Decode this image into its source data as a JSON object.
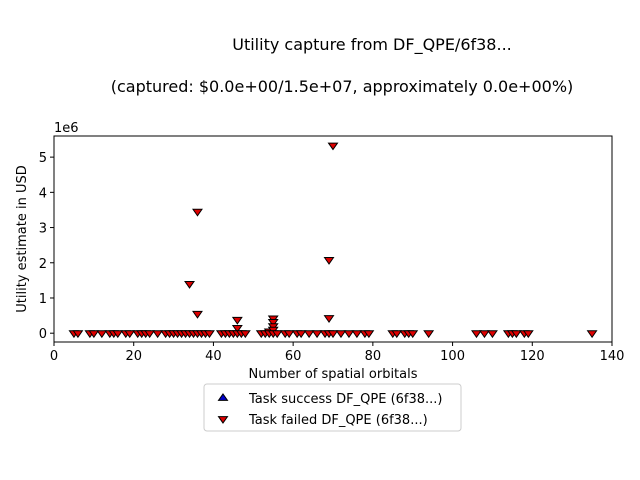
{
  "chart_data": {
    "type": "scatter",
    "title_lines": [
      "Utility capture from DF_QPE/6f38...",
      "(captured: $0.0e+00/1.5e+07, approximately 0.0e+00%)"
    ],
    "xlabel": "Number of spatial orbitals",
    "ylabel": "Utility estimate in USD",
    "y_offset_label": "1e6",
    "xlim": [
      0,
      140
    ],
    "ylim": [
      -250000,
      5600000
    ],
    "x_ticks": [
      0,
      20,
      40,
      60,
      80,
      100,
      120,
      140
    ],
    "x_tick_labels": [
      "0",
      "20",
      "40",
      "60",
      "80",
      "100",
      "120",
      "140"
    ],
    "y_ticks": [
      0,
      1000000,
      2000000,
      3000000,
      4000000,
      5000000
    ],
    "y_tick_labels": [
      "0",
      "1",
      "2",
      "3",
      "4",
      "5"
    ],
    "grid": false,
    "legend_position": "below",
    "series": [
      {
        "name": "Task success DF_QPE (6f38...)",
        "marker": "triangle-up",
        "color": "#0000cc",
        "points": []
      },
      {
        "name": "Task failed DF_QPE (6f38...)",
        "marker": "triangle-down",
        "color": "#dd0000",
        "points": [
          [
            5,
            0
          ],
          [
            6,
            0
          ],
          [
            9,
            0
          ],
          [
            10,
            0
          ],
          [
            12,
            0
          ],
          [
            14,
            0
          ],
          [
            15,
            0
          ],
          [
            16,
            0
          ],
          [
            18,
            0
          ],
          [
            19,
            0
          ],
          [
            21,
            0
          ],
          [
            22,
            0
          ],
          [
            23,
            0
          ],
          [
            24,
            0
          ],
          [
            26,
            0
          ],
          [
            28,
            0
          ],
          [
            29,
            0
          ],
          [
            30,
            0
          ],
          [
            31,
            0
          ],
          [
            32,
            0
          ],
          [
            33,
            0
          ],
          [
            34,
            1400000
          ],
          [
            34,
            0
          ],
          [
            35,
            0
          ],
          [
            36,
            3450000
          ],
          [
            36,
            550000
          ],
          [
            36,
            0
          ],
          [
            37,
            0
          ],
          [
            38,
            0
          ],
          [
            39,
            0
          ],
          [
            42,
            0
          ],
          [
            43,
            0
          ],
          [
            44,
            0
          ],
          [
            45,
            0
          ],
          [
            46,
            380000
          ],
          [
            46,
            150000
          ],
          [
            46,
            0
          ],
          [
            47,
            0
          ],
          [
            48,
            0
          ],
          [
            52,
            0
          ],
          [
            53,
            0
          ],
          [
            54,
            50000
          ],
          [
            54,
            0
          ],
          [
            55,
            420000
          ],
          [
            55,
            320000
          ],
          [
            55,
            200000
          ],
          [
            55,
            100000
          ],
          [
            55,
            0
          ],
          [
            56,
            0
          ],
          [
            58,
            0
          ],
          [
            59,
            0
          ],
          [
            61,
            0
          ],
          [
            62,
            0
          ],
          [
            64,
            0
          ],
          [
            66,
            0
          ],
          [
            68,
            0
          ],
          [
            69,
            2080000
          ],
          [
            69,
            430000
          ],
          [
            69,
            0
          ],
          [
            70,
            5330000
          ],
          [
            70,
            0
          ],
          [
            72,
            0
          ],
          [
            74,
            0
          ],
          [
            76,
            0
          ],
          [
            78,
            0
          ],
          [
            79,
            0
          ],
          [
            85,
            0
          ],
          [
            86,
            0
          ],
          [
            88,
            0
          ],
          [
            89,
            0
          ],
          [
            90,
            0
          ],
          [
            94,
            0
          ],
          [
            106,
            0
          ],
          [
            108,
            0
          ],
          [
            110,
            0
          ],
          [
            114,
            0
          ],
          [
            115,
            0
          ],
          [
            116,
            0
          ],
          [
            118,
            0
          ],
          [
            119,
            0
          ],
          [
            135,
            0
          ]
        ]
      }
    ]
  }
}
